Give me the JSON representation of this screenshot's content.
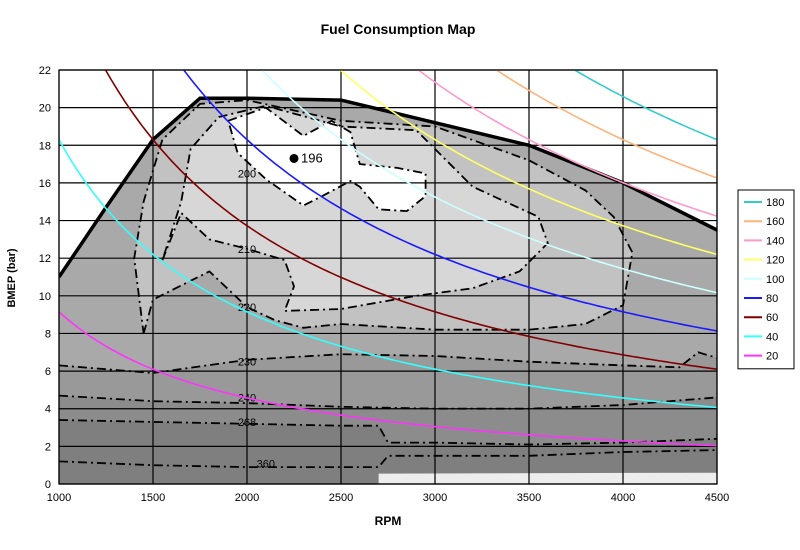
{
  "chart_data": {
    "type": "line",
    "title": "Fuel Consumption Map",
    "xlabel": "RPM",
    "ylabel": "BMEP (bar)",
    "xlim": [
      1000,
      4500
    ],
    "ylim": [
      0,
      22
    ],
    "x_ticks": [
      1000,
      1500,
      2000,
      2500,
      3000,
      3500,
      4000,
      4500
    ],
    "y_ticks": [
      0,
      2,
      4,
      6,
      8,
      10,
      12,
      14,
      16,
      18,
      20,
      22
    ],
    "grid": true,
    "legend_position": "right",
    "max_torque_curve": [
      [
        1000,
        11
      ],
      [
        1250,
        14.7
      ],
      [
        1500,
        18.3
      ],
      [
        1750,
        20.5
      ],
      [
        2000,
        20.5
      ],
      [
        2500,
        20.4
      ],
      [
        3000,
        19.2
      ],
      [
        3500,
        18
      ],
      [
        4000,
        16
      ],
      [
        4500,
        13.5
      ]
    ],
    "min_bsfc_point": {
      "rpm": 2250,
      "bmep": 17.3,
      "label": "196"
    },
    "bsfc_contours": [
      {
        "label": "360",
        "label_at": [
          2100,
          1.1
        ],
        "points": [
          [
            1000,
            1.2
          ],
          [
            1500,
            1
          ],
          [
            2000,
            0.9
          ],
          [
            2500,
            0.9
          ],
          [
            2700,
            0.9
          ],
          [
            2750,
            1.5
          ],
          [
            3000,
            1.5
          ],
          [
            3500,
            1.5
          ],
          [
            4000,
            1.7
          ],
          [
            4500,
            1.8
          ]
        ]
      },
      {
        "label": "268",
        "label_at": [
          2000,
          3.3
        ],
        "points": [
          [
            1000,
            3.4
          ],
          [
            1500,
            3.3
          ],
          [
            2000,
            3.2
          ],
          [
            2500,
            3.1
          ],
          [
            2700,
            3.1
          ],
          [
            2750,
            2.2
          ],
          [
            3000,
            2.2
          ],
          [
            3500,
            2.1
          ],
          [
            4000,
            2.2
          ],
          [
            4500,
            2.4
          ]
        ]
      },
      {
        "label": "240",
        "label_at": [
          2000,
          4.6
        ],
        "points": [
          [
            1000,
            4.7
          ],
          [
            1500,
            4.4
          ],
          [
            2000,
            4.3
          ],
          [
            2500,
            4.1
          ],
          [
            3000,
            4
          ],
          [
            3500,
            4
          ],
          [
            4000,
            4.2
          ],
          [
            4500,
            4.6
          ]
        ]
      },
      {
        "label": "230",
        "label_at": [
          2000,
          6.5
        ],
        "points": [
          [
            1000,
            6.3
          ],
          [
            1500,
            5.9
          ],
          [
            2000,
            6.6
          ],
          [
            2500,
            6.9
          ],
          [
            3000,
            6.8
          ],
          [
            3500,
            6.5
          ],
          [
            4000,
            6.3
          ],
          [
            4300,
            6.2
          ],
          [
            4400,
            7
          ],
          [
            4500,
            6.7
          ]
        ]
      },
      {
        "label": "220",
        "label_at": [
          2000,
          9.4
        ],
        "points": [
          [
            1450,
            8
          ],
          [
            1500,
            9.8
          ],
          [
            1800,
            11.3
          ],
          [
            2000,
            9.4
          ],
          [
            2150,
            8.7
          ],
          [
            2300,
            8.3
          ],
          [
            2500,
            8.5
          ],
          [
            3000,
            8.2
          ],
          [
            3500,
            8.2
          ],
          [
            3800,
            8.5
          ],
          [
            4000,
            9.5
          ],
          [
            4050,
            12.3
          ],
          [
            3950,
            14.2
          ],
          [
            3800,
            15.6
          ],
          [
            3500,
            17.2
          ],
          [
            3000,
            19
          ],
          [
            2500,
            19.3
          ],
          [
            2000,
            20.4
          ],
          [
            1750,
            20.2
          ],
          [
            1550,
            18.3
          ],
          [
            1450,
            15
          ],
          [
            1400,
            12
          ],
          [
            1450,
            8
          ]
        ]
      },
      {
        "label": "210",
        "label_at": [
          2000,
          12.5
        ],
        "points": [
          [
            1550,
            11.9
          ],
          [
            1650,
            14.4
          ],
          [
            1800,
            13
          ],
          [
            2000,
            12.5
          ],
          [
            2200,
            11.9
          ],
          [
            2250,
            10.5
          ],
          [
            2200,
            9.2
          ],
          [
            2500,
            9.3
          ],
          [
            2900,
            10
          ],
          [
            3200,
            10.4
          ],
          [
            3450,
            11.3
          ],
          [
            3600,
            12.8
          ],
          [
            3550,
            14.2
          ],
          [
            3200,
            15.8
          ],
          [
            3000,
            17.8
          ],
          [
            2900,
            18.8
          ],
          [
            2500,
            19
          ],
          [
            2100,
            20.1
          ],
          [
            1850,
            19.5
          ],
          [
            1700,
            17.8
          ],
          [
            1650,
            15
          ],
          [
            1550,
            11.9
          ]
        ]
      },
      {
        "label": "200",
        "label_at": [
          2000,
          16.5
        ],
        "points": [
          [
            1900,
            19.3
          ],
          [
            2100,
            20
          ],
          [
            2300,
            18.5
          ],
          [
            2450,
            19.3
          ],
          [
            2550,
            18.7
          ],
          [
            2600,
            17
          ],
          [
            2800,
            16.8
          ],
          [
            2950,
            16.5
          ],
          [
            2950,
            15.3
          ],
          [
            2850,
            14.5
          ],
          [
            2700,
            14.6
          ],
          [
            2600,
            15.8
          ],
          [
            2550,
            16.1
          ],
          [
            2400,
            15.3
          ],
          [
            2300,
            14.8
          ],
          [
            2100,
            16.2
          ],
          [
            1950,
            17.6
          ],
          [
            1900,
            19.3
          ]
        ]
      }
    ],
    "power_lines": {
      "unit_note": "",
      "series": [
        {
          "name": "180",
          "color": "#33cccc"
        },
        {
          "name": "160",
          "color": "#ffb37a"
        },
        {
          "name": "140",
          "color": "#ff99cc"
        },
        {
          "name": "120",
          "color": "#ffff66"
        },
        {
          "name": "100",
          "color": "#ccffff"
        },
        {
          "name": "80",
          "color": "#1a1aff"
        },
        {
          "name": "60",
          "color": "#800000"
        },
        {
          "name": "40",
          "color": "#33ffff"
        },
        {
          "name": "20",
          "color": "#ff33ff"
        }
      ]
    }
  }
}
